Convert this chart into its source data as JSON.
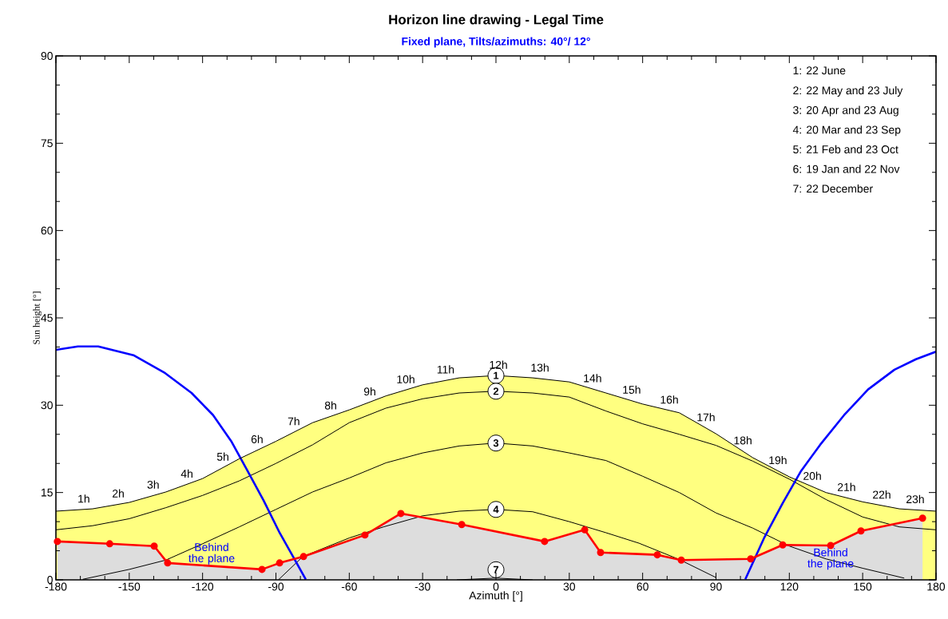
{
  "chart_data": {
    "type": "line",
    "title": "Horizon line drawing - Legal Time",
    "subtitle": "Fixed plane, Tilts/azimuths: 40°/ 12°",
    "xlabel": "Azimuth [°]",
    "ylabel": "Sun height [°]",
    "xlim": [
      -180,
      180
    ],
    "ylim": [
      0,
      90
    ],
    "xticks": [
      -180,
      -150,
      -120,
      -90,
      -60,
      -30,
      0,
      30,
      60,
      90,
      120,
      150,
      180
    ],
    "yticks": [
      0,
      15,
      30,
      45,
      60,
      75,
      90
    ],
    "series": [
      {
        "type": "area",
        "name": "1",
        "color": "#ffff80",
        "x": [
          -180,
          -165,
          -150,
          -135,
          -120,
          -105,
          -90,
          -75,
          -60,
          -45,
          -30,
          -15,
          0,
          15,
          30,
          45,
          60,
          75,
          90,
          105,
          120,
          135,
          150,
          165,
          180
        ],
        "values": [
          11.8,
          12.2,
          13.3,
          15.1,
          17.4,
          20.8,
          23.8,
          27.0,
          29.2,
          31.6,
          33.5,
          34.7,
          35.1,
          34.7,
          34.0,
          32.1,
          30.2,
          28.7,
          25.1,
          21.0,
          17.7,
          15.0,
          13.4,
          12.2,
          11.8
        ]
      },
      {
        "name": "2",
        "color": "#000000",
        "x": [
          -180,
          -165,
          -150,
          -135,
          -120,
          -105,
          -90,
          -75,
          -60,
          -45,
          -30,
          -15,
          0,
          15,
          30,
          45,
          60,
          75,
          90,
          105,
          120,
          135,
          150,
          165,
          180
        ],
        "values": [
          8.6,
          9.3,
          10.5,
          12.4,
          14.5,
          17.0,
          20.0,
          23.2,
          27.0,
          29.5,
          31.1,
          32.1,
          32.4,
          32.1,
          31.4,
          29.0,
          26.8,
          25.0,
          23.1,
          20.4,
          17.3,
          13.8,
          10.8,
          9.1,
          8.6
        ]
      },
      {
        "name": "3",
        "color": "#000000",
        "x": [
          -169,
          -150,
          -135,
          -120,
          -105,
          -90,
          -75,
          -60,
          -45,
          -30,
          -15,
          0,
          15,
          30,
          45,
          60,
          75,
          90,
          105,
          120,
          135,
          150,
          167
        ],
        "values": [
          0.1,
          1.8,
          3.4,
          6.2,
          9.1,
          12.1,
          15.1,
          17.5,
          20.1,
          21.8,
          23.0,
          23.5,
          23.0,
          21.8,
          20.5,
          17.8,
          15.0,
          11.5,
          8.9,
          5.8,
          3.6,
          2.0,
          0.3
        ]
      },
      {
        "name": "4",
        "color": "#000000",
        "x": [
          -89,
          -79,
          -60,
          -46,
          -30,
          -15,
          0,
          15,
          30,
          45,
          58.5,
          75,
          90
        ],
        "values": [
          0,
          4.0,
          7.2,
          9.1,
          11.0,
          11.8,
          12.1,
          11.7,
          10.0,
          8.1,
          6.3,
          3.5,
          0.4
        ]
      },
      {
        "name": "7",
        "color": "#000000",
        "x": [
          -16,
          0,
          15
        ],
        "values": [
          0,
          0.3,
          0
        ]
      },
      {
        "type": "area",
        "color": "#ff0000",
        "marker": "circle",
        "x": [
          -179.4,
          -158,
          -139.8,
          -134.3,
          -95.7,
          -88.5,
          -78.7,
          -53.6,
          -38.9,
          -14,
          19.9,
          36.3,
          42.8,
          66,
          75.8,
          104.2,
          117.3,
          136.9,
          149.3,
          174.5
        ],
        "values": [
          6.6,
          6.2,
          5.8,
          2.9,
          1.8,
          2.9,
          4.0,
          7.7,
          11.4,
          9.5,
          6.6,
          8.6,
          4.7,
          4.3,
          3.4,
          3.6,
          6.0,
          5.9,
          8.4,
          10.6
        ]
      },
      {
        "color": "#0000ff",
        "x": [
          -180,
          -171,
          -162.7,
          -148.3,
          -135.3,
          -124.5,
          -115.7,
          -108.1,
          -101.6,
          -95,
          -88.5,
          -83,
          -77.8,
          0,
          102,
          109.8,
          117.3,
          124.8,
          132.6,
          142.4,
          152.2,
          163,
          171.8,
          180
        ],
        "values": [
          39.5,
          40.1,
          40.1,
          38.6,
          35.5,
          32.1,
          28.3,
          23.7,
          18.7,
          13.6,
          8.1,
          4.0,
          0.1,
          null,
          0.1,
          7.3,
          13.2,
          18.7,
          23.2,
          28.3,
          32.7,
          36.1,
          37.9,
          39.2
        ]
      }
    ],
    "annotations": [
      "1: 22 June",
      "2: 22 May and 23 July",
      "3: 20 Apr and 23 Aug",
      "4: 20 Mar and 23 Sep",
      "5: 21 Feb and 23 Oct",
      "6: 19 Jan and 22 Nov",
      "7: 22 December",
      "Behind the plane",
      "Behind the plane",
      {
        "text": "1h",
        "x": -168.6,
        "y": 12.1
      },
      {
        "text": "2h",
        "x": -154.5,
        "y": 13.0
      },
      {
        "text": "3h",
        "x": -140.2,
        "y": 14.5
      },
      {
        "text": "4h",
        "x": -126.4,
        "y": 16.4
      },
      {
        "text": "5h",
        "x": -111.7,
        "y": 19.3
      },
      {
        "text": "6h",
        "x": -97.7,
        "y": 22.3
      },
      {
        "text": "7h",
        "x": -82.7,
        "y": 25.4
      },
      {
        "text": "8h",
        "x": -67.6,
        "y": 28.1
      },
      {
        "text": "9h",
        "x": -51.6,
        "y": 30.5
      },
      {
        "text": "10h",
        "x": -36.9,
        "y": 32.6
      },
      {
        "text": "11h",
        "x": -20.6,
        "y": 34.3
      },
      {
        "text": "12h",
        "x": 1.0,
        "y": 35.1
      },
      {
        "text": "13h",
        "x": 18.0,
        "y": 34.6
      },
      {
        "text": "14h",
        "x": 39.5,
        "y": 32.8
      },
      {
        "text": "15h",
        "x": 55.5,
        "y": 30.8
      },
      {
        "text": "16h",
        "x": 70.9,
        "y": 29.1
      },
      {
        "text": "17h",
        "x": 85.9,
        "y": 26.1
      },
      {
        "text": "18h",
        "x": 101.0,
        "y": 22.1
      },
      {
        "text": "19h",
        "x": 115.3,
        "y": 18.7
      },
      {
        "text": "20h",
        "x": 129.4,
        "y": 16.0
      },
      {
        "text": "21h",
        "x": 143.4,
        "y": 14.1
      },
      {
        "text": "22h",
        "x": 157.8,
        "y": 12.8
      },
      {
        "text": "23h",
        "x": 171.5,
        "y": 12.0
      }
    ]
  }
}
